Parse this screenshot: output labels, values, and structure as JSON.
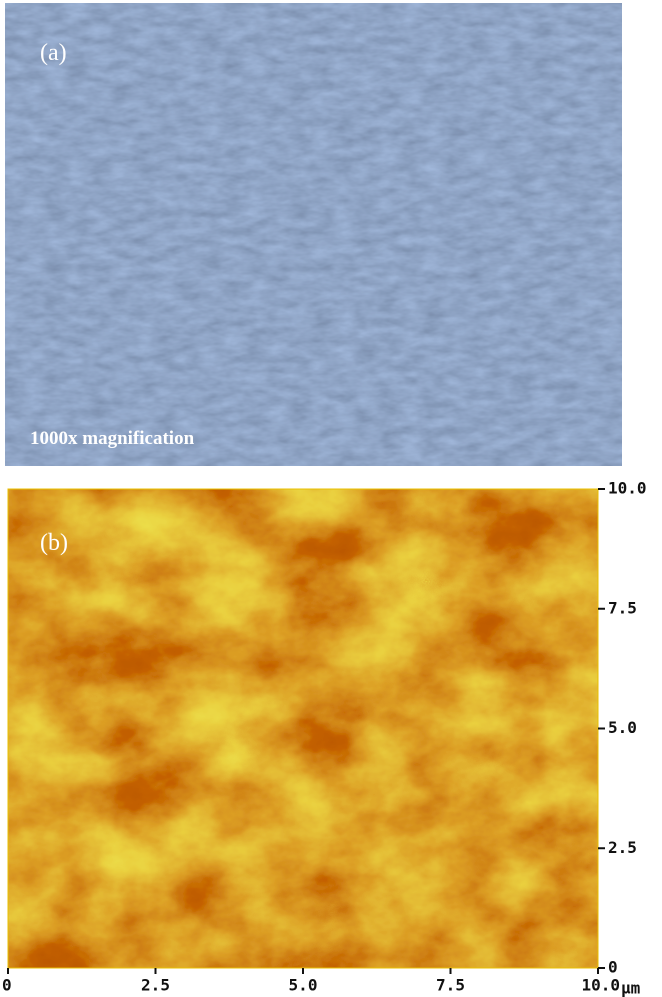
{
  "panel_a": {
    "label": "(a)",
    "caption": "1000x magnification"
  },
  "panel_b": {
    "label": "(b)",
    "xlim": [
      0,
      10
    ],
    "ylim": [
      0,
      10
    ],
    "xticks": [
      0,
      {
        "value": 2.5,
        "label": "2.5"
      },
      {
        "value": 5,
        "label": "5.0"
      },
      {
        "value": 7.5,
        "label": "7.5"
      },
      {
        "value": 10,
        "label": "10.0"
      }
    ],
    "yticks": [
      0,
      {
        "value": 2.5,
        "label": "2.5"
      },
      {
        "value": 5,
        "label": "5.0"
      },
      {
        "value": 7.5,
        "label": "7.5"
      },
      {
        "value": 10,
        "label": "10.0"
      }
    ],
    "x_unit": "μm"
  }
}
